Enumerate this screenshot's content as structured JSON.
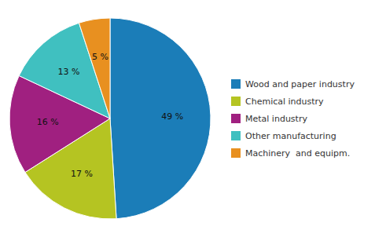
{
  "chart_data": {
    "type": "pie",
    "categories": [
      "Wood and paper industry",
      "Chemical industry",
      "Metal industry",
      "Other manufacturing",
      "Machinery  and equipm."
    ],
    "values": [
      49,
      17,
      16,
      13,
      5
    ],
    "value_labels": [
      "49 %",
      "17 %",
      "16 %",
      "13 %",
      "5 %"
    ],
    "colors": [
      "#1b7db8",
      "#b5c422",
      "#a02080",
      "#40c0c0",
      "#e89020"
    ],
    "data_labels": true,
    "legend": "right"
  }
}
